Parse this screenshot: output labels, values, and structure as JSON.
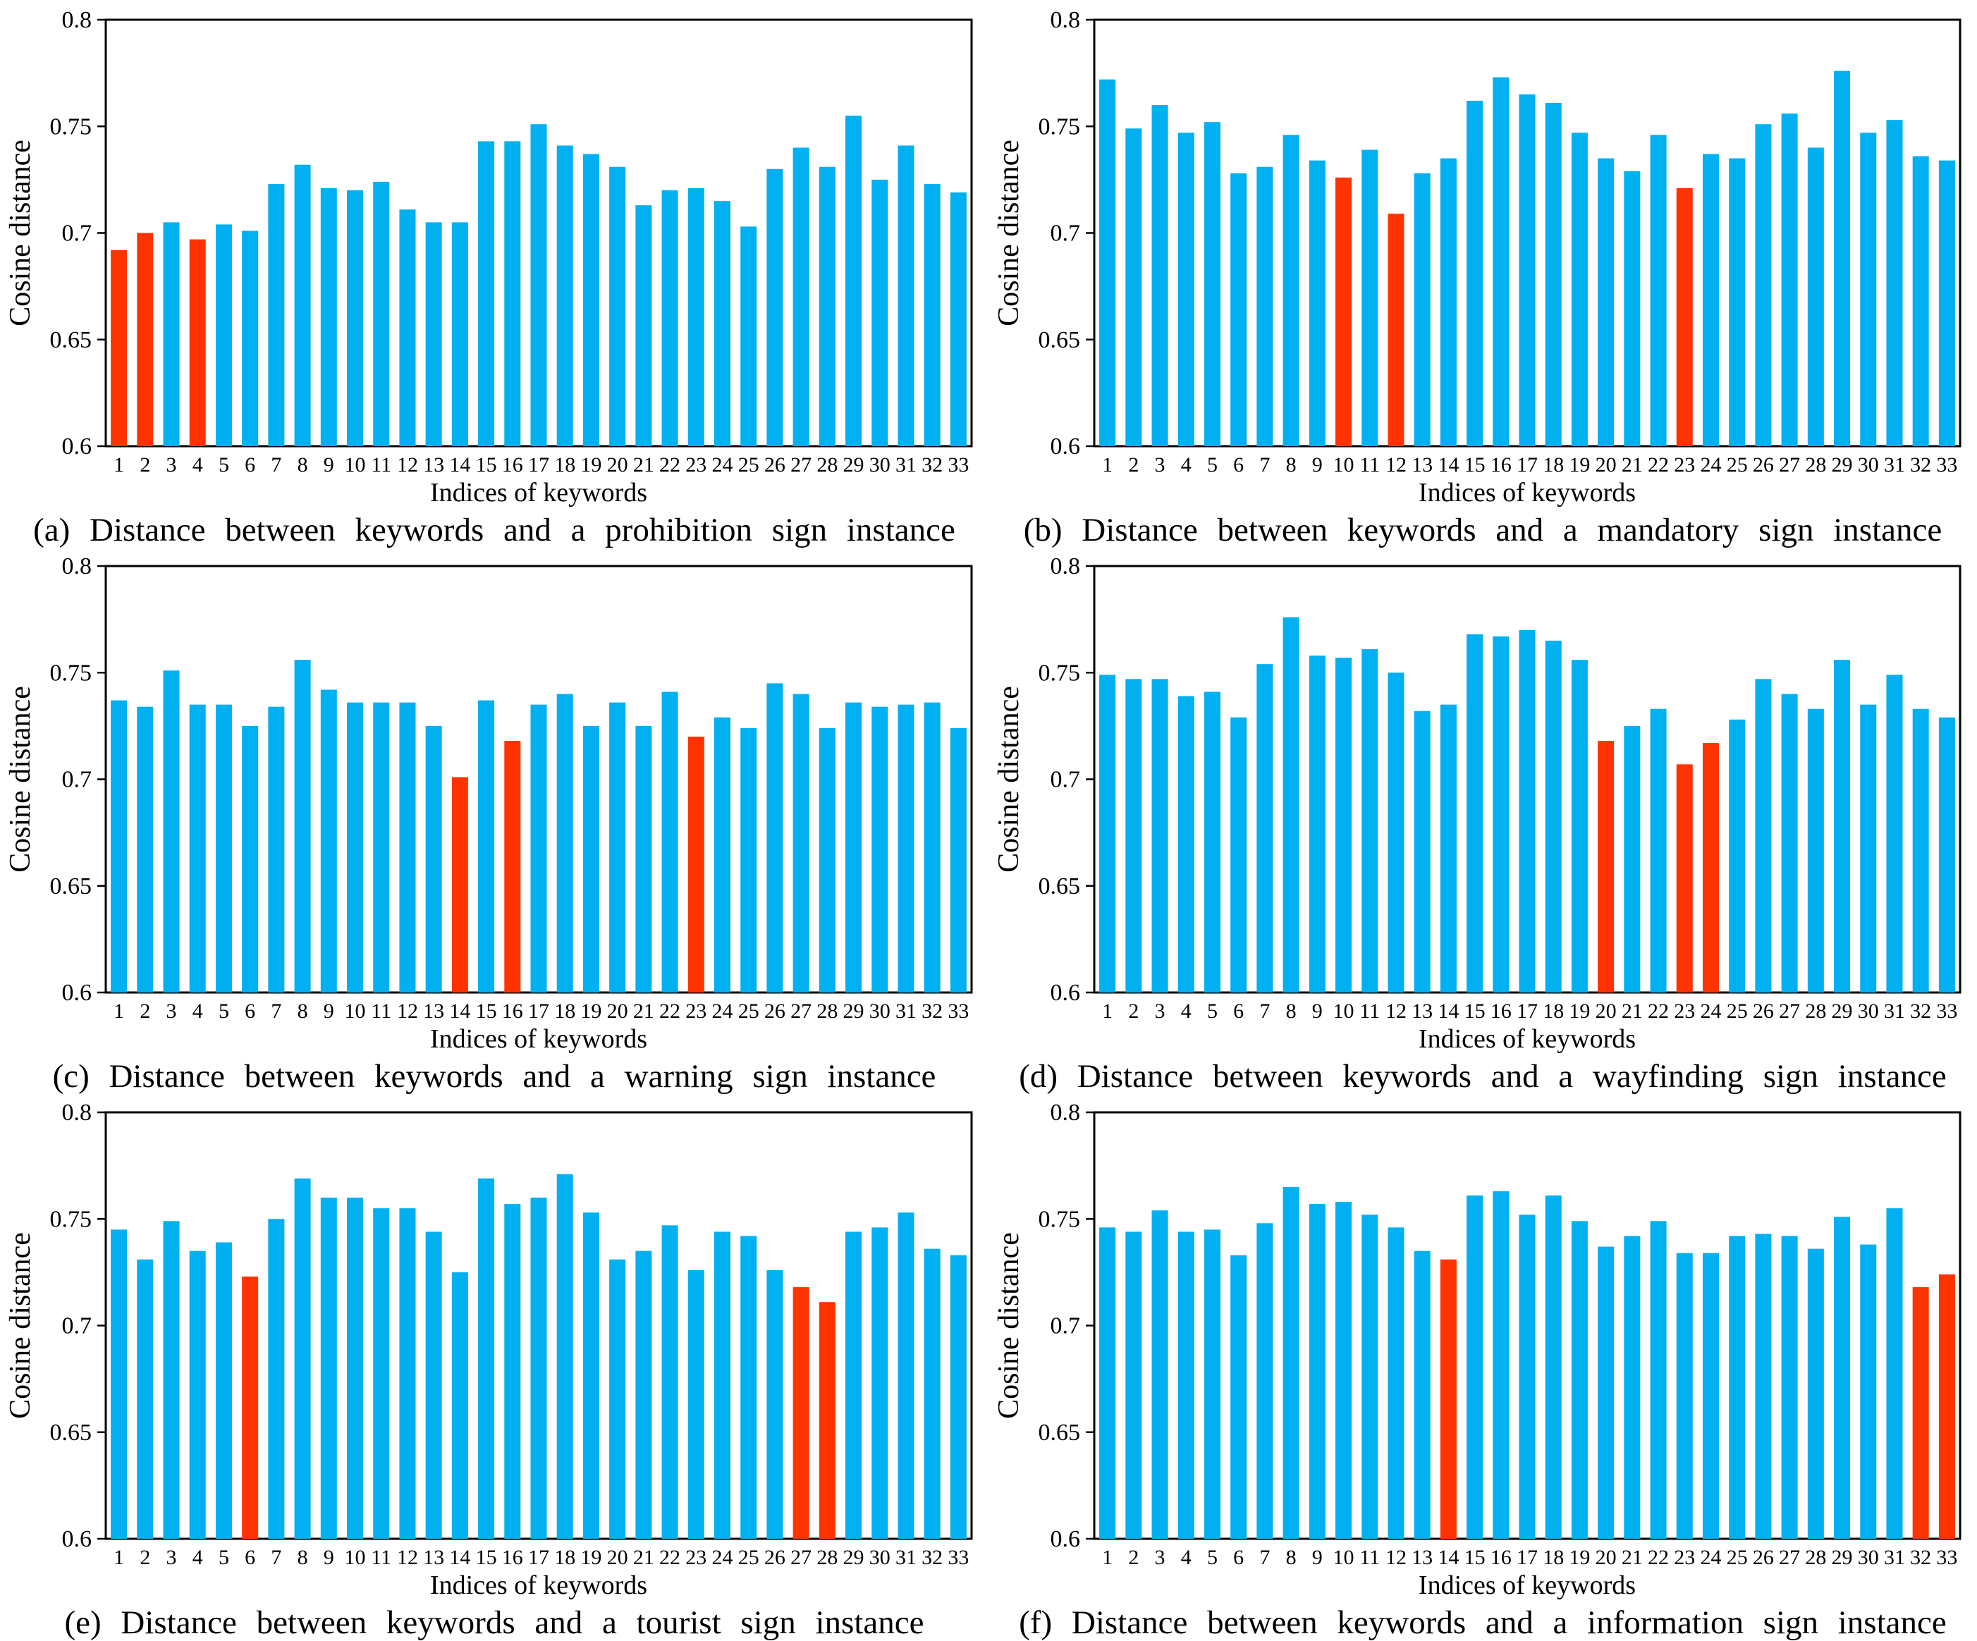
{
  "figure": {
    "background": "#ffffff",
    "colors": {
      "bar": "#00B0F0",
      "bar_highlight": "#FF3300",
      "axis": "#000000",
      "text": "#000000"
    },
    "axis": {
      "ylabel": "Cosine distance",
      "xlabel": "Indices of keywords",
      "ylim": [
        0.6,
        0.8
      ],
      "yticks": [
        0.8,
        0.75,
        0.7,
        0.65,
        0.6
      ],
      "ytick_labels": [
        "0.8",
        "0.75",
        "0.7",
        "0.65",
        "0.6"
      ],
      "grid": false,
      "legend": "none"
    }
  },
  "chart_data": [
    {
      "type": "bar",
      "panel": "a",
      "caption": "(a) Distance between keywords and a prohibition sign instance",
      "categories": [
        "1",
        "2",
        "3",
        "4",
        "5",
        "6",
        "7",
        "8",
        "9",
        "10",
        "11",
        "12",
        "13",
        "14",
        "15",
        "16",
        "17",
        "18",
        "19",
        "20",
        "21",
        "22",
        "23",
        "24",
        "25",
        "26",
        "27",
        "28",
        "29",
        "30",
        "31",
        "32",
        "33"
      ],
      "values": [
        0.692,
        0.7,
        0.705,
        0.697,
        0.704,
        0.701,
        0.723,
        0.732,
        0.721,
        0.72,
        0.724,
        0.711,
        0.705,
        0.705,
        0.743,
        0.743,
        0.751,
        0.741,
        0.737,
        0.731,
        0.713,
        0.72,
        0.721,
        0.715,
        0.703,
        0.73,
        0.74,
        0.731,
        0.755,
        0.725,
        0.741,
        0.723,
        0.719
      ],
      "red_bar_indices": [
        1,
        2,
        4
      ],
      "xlabel": "Indices of keywords",
      "ylabel": "Cosine distance",
      "ylim": [
        0.6,
        0.8
      ]
    },
    {
      "type": "bar",
      "panel": "b",
      "caption": "(b) Distance between keywords and a mandatory sign instance",
      "categories": [
        "1",
        "2",
        "3",
        "4",
        "5",
        "6",
        "7",
        "8",
        "9",
        "10",
        "11",
        "12",
        "13",
        "14",
        "15",
        "16",
        "17",
        "18",
        "19",
        "20",
        "21",
        "22",
        "23",
        "24",
        "25",
        "26",
        "27",
        "28",
        "29",
        "30",
        "31",
        "32",
        "33"
      ],
      "values": [
        0.772,
        0.749,
        0.76,
        0.747,
        0.752,
        0.728,
        0.731,
        0.746,
        0.734,
        0.726,
        0.739,
        0.709,
        0.728,
        0.735,
        0.762,
        0.773,
        0.765,
        0.761,
        0.747,
        0.735,
        0.729,
        0.746,
        0.721,
        0.737,
        0.735,
        0.751,
        0.756,
        0.74,
        0.776,
        0.747,
        0.753,
        0.736,
        0.734
      ],
      "red_bar_indices": [
        10,
        12,
        23
      ],
      "xlabel": "Indices of keywords",
      "ylabel": "Cosine distance",
      "ylim": [
        0.6,
        0.8
      ]
    },
    {
      "type": "bar",
      "panel": "c",
      "caption": "(c) Distance between keywords and a warning sign instance",
      "categories": [
        "1",
        "2",
        "3",
        "4",
        "5",
        "6",
        "7",
        "8",
        "9",
        "10",
        "11",
        "12",
        "13",
        "14",
        "15",
        "16",
        "17",
        "18",
        "19",
        "20",
        "21",
        "22",
        "23",
        "24",
        "25",
        "26",
        "27",
        "28",
        "29",
        "30",
        "31",
        "32",
        "33"
      ],
      "values": [
        0.737,
        0.734,
        0.751,
        0.735,
        0.735,
        0.725,
        0.734,
        0.756,
        0.742,
        0.736,
        0.736,
        0.736,
        0.725,
        0.701,
        0.737,
        0.718,
        0.735,
        0.74,
        0.725,
        0.736,
        0.725,
        0.741,
        0.72,
        0.729,
        0.724,
        0.745,
        0.74,
        0.724,
        0.736,
        0.734,
        0.735,
        0.736,
        0.724
      ],
      "red_bar_indices": [
        14,
        16,
        23
      ],
      "xlabel": "Indices of keywords",
      "ylabel": "Cosine distance",
      "ylim": [
        0.6,
        0.8
      ]
    },
    {
      "type": "bar",
      "panel": "d",
      "caption": "(d) Distance between keywords and a wayfinding sign instance",
      "categories": [
        "1",
        "2",
        "3",
        "4",
        "5",
        "6",
        "7",
        "8",
        "9",
        "10",
        "11",
        "12",
        "13",
        "14",
        "15",
        "16",
        "17",
        "18",
        "19",
        "20",
        "21",
        "22",
        "23",
        "24",
        "25",
        "26",
        "27",
        "28",
        "29",
        "30",
        "31",
        "32",
        "33"
      ],
      "values": [
        0.749,
        0.747,
        0.747,
        0.739,
        0.741,
        0.729,
        0.754,
        0.776,
        0.758,
        0.757,
        0.761,
        0.75,
        0.732,
        0.735,
        0.768,
        0.767,
        0.77,
        0.765,
        0.756,
        0.718,
        0.725,
        0.733,
        0.707,
        0.717,
        0.728,
        0.747,
        0.74,
        0.733,
        0.756,
        0.735,
        0.749,
        0.733,
        0.729
      ],
      "red_bar_indices": [
        20,
        23,
        24
      ],
      "xlabel": "Indices of keywords",
      "ylabel": "Cosine distance",
      "ylim": [
        0.6,
        0.8
      ]
    },
    {
      "type": "bar",
      "panel": "e",
      "caption": "(e) Distance between keywords and a tourist sign instance",
      "categories": [
        "1",
        "2",
        "3",
        "4",
        "5",
        "6",
        "7",
        "8",
        "9",
        "10",
        "11",
        "12",
        "13",
        "14",
        "15",
        "16",
        "17",
        "18",
        "19",
        "20",
        "21",
        "22",
        "23",
        "24",
        "25",
        "26",
        "27",
        "28",
        "29",
        "30",
        "31",
        "32",
        "33"
      ],
      "values": [
        0.745,
        0.731,
        0.749,
        0.735,
        0.739,
        0.723,
        0.75,
        0.769,
        0.76,
        0.76,
        0.755,
        0.755,
        0.744,
        0.725,
        0.769,
        0.757,
        0.76,
        0.771,
        0.753,
        0.731,
        0.735,
        0.747,
        0.726,
        0.744,
        0.742,
        0.726,
        0.718,
        0.711,
        0.744,
        0.746,
        0.753,
        0.736,
        0.733
      ],
      "red_bar_indices": [
        6,
        27,
        28
      ],
      "xlabel": "Indices of keywords",
      "ylabel": "Cosine distance",
      "ylim": [
        0.6,
        0.8
      ]
    },
    {
      "type": "bar",
      "panel": "f",
      "caption": "(f) Distance between keywords and a information sign instance",
      "categories": [
        "1",
        "2",
        "3",
        "4",
        "5",
        "6",
        "7",
        "8",
        "9",
        "10",
        "11",
        "12",
        "13",
        "14",
        "15",
        "16",
        "17",
        "18",
        "19",
        "20",
        "21",
        "22",
        "23",
        "24",
        "25",
        "26",
        "27",
        "28",
        "29",
        "30",
        "31",
        "32",
        "33"
      ],
      "values": [
        0.746,
        0.744,
        0.754,
        0.744,
        0.745,
        0.733,
        0.748,
        0.765,
        0.757,
        0.758,
        0.752,
        0.746,
        0.735,
        0.731,
        0.761,
        0.763,
        0.752,
        0.761,
        0.749,
        0.737,
        0.742,
        0.749,
        0.734,
        0.734,
        0.742,
        0.743,
        0.742,
        0.736,
        0.751,
        0.738,
        0.755,
        0.718,
        0.724
      ],
      "red_bar_indices": [
        14,
        32,
        33
      ],
      "xlabel": "Indices of keywords",
      "ylabel": "Cosine distance",
      "ylim": [
        0.6,
        0.8
      ]
    }
  ]
}
